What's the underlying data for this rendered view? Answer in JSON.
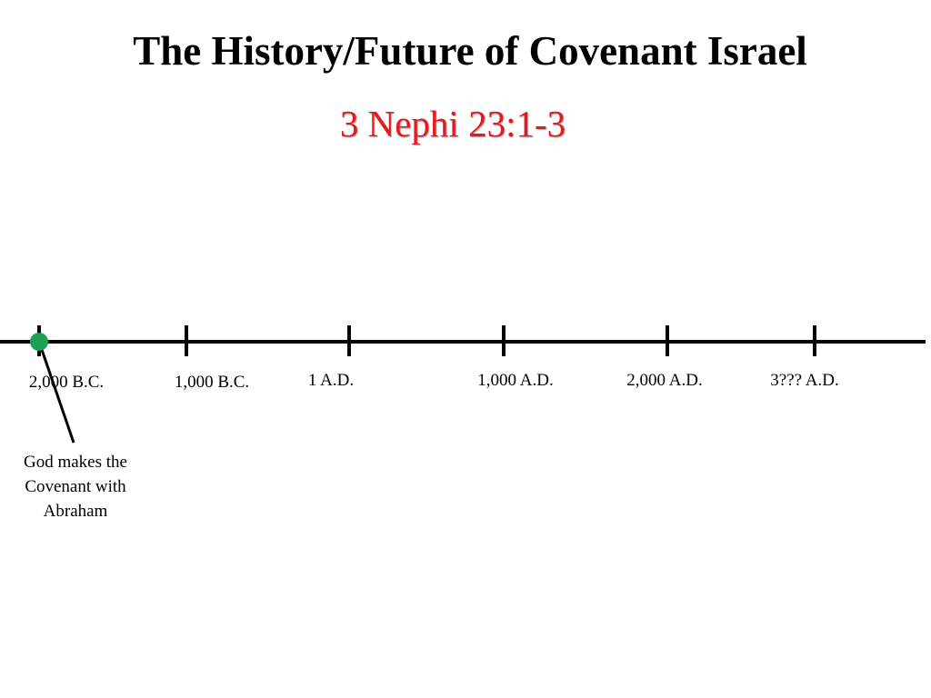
{
  "title": "The History/Future of Covenant Israel",
  "subtitle": "3 Nephi 23:1-3",
  "timeline": {
    "ticks": [
      {
        "label": "2,000 B.C."
      },
      {
        "label": "1,000 B.C."
      },
      {
        "label": "1 A.D."
      },
      {
        "label": "1,000 A.D."
      },
      {
        "label": "2,000 A.D."
      },
      {
        "label": "3??? A.D."
      }
    ],
    "event": {
      "label": "God makes the Covenant with Abraham",
      "marker_color": "#1aa152"
    }
  },
  "colors": {
    "title": "#000000",
    "subtitle": "#e8191d",
    "line": "#000000"
  }
}
